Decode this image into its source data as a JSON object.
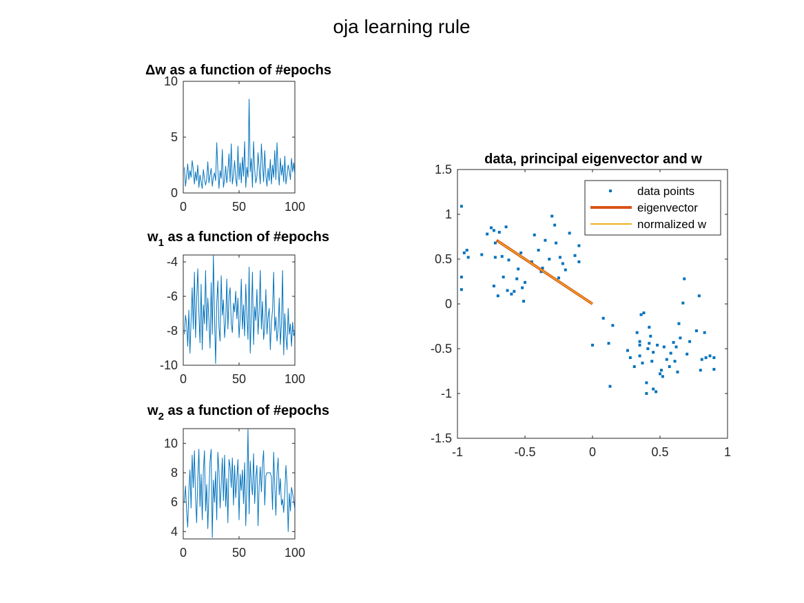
{
  "figure": {
    "title": "oja learning rule"
  },
  "colors": {
    "series_blue": "#0072BD",
    "eigenvector": "#D95319",
    "normalized_w": "#EDB120",
    "axis": "#262626",
    "legend_border": "#262626"
  },
  "chart_data": [
    {
      "id": "dw",
      "type": "line",
      "title": "Δw as a function of #epochs",
      "xlim": [
        0,
        100
      ],
      "ylim": [
        0,
        10
      ],
      "xticks": [
        0,
        50,
        100
      ],
      "yticks": [
        0,
        5,
        10
      ],
      "series": [
        {
          "x_start": 1,
          "values": [
            2.3,
            0.6,
            1.5,
            2.6,
            1.2,
            2.0,
            1.4,
            2.9,
            2.1,
            0.8,
            1.9,
            1.1,
            2.5,
            0.5,
            1.6,
            1.0,
            0.4,
            2.1,
            1.3,
            0.7,
            1.2,
            2.8,
            0.9,
            1.6,
            2.2,
            0.6,
            1.4,
            1.8,
            1.1,
            4.5,
            2.1,
            0.4,
            2.0,
            1.3,
            3.9,
            0.5,
            1.2,
            2.4,
            0.9,
            2.0,
            3.5,
            1.0,
            4.4,
            0.8,
            1.6,
            2.9,
            1.3,
            0.6,
            4.2,
            1.2,
            2.7,
            0.9,
            3.2,
            1.5,
            4.6,
            0.5,
            2.3,
            1.4,
            8.4,
            1.9,
            3.1,
            0.5,
            4.6,
            2.1,
            0.9,
            1.5,
            3.6,
            2.2,
            0.8,
            4.4,
            2.6,
            1.0,
            3.8,
            1.6,
            0.6,
            2.2,
            1.1,
            3.0,
            0.8,
            2.5,
            1.4,
            3.8,
            1.2,
            4.5,
            2.1,
            0.7,
            3.1,
            1.6,
            2.5,
            1.0,
            3.3,
            0.8,
            1.6,
            2.5,
            2.0,
            1.2,
            3.1,
            1.9,
            2.7,
            1.6
          ]
        }
      ]
    },
    {
      "id": "w1",
      "type": "line",
      "title_main": "w",
      "title_sub": "1",
      "title_rest": " as a function of #epochs",
      "xlim": [
        0,
        100
      ],
      "ylim": [
        -10,
        -3.6
      ],
      "xticks": [
        0,
        50,
        100
      ],
      "yticks": [
        -10,
        -8,
        -6,
        -4
      ],
      "series": [
        {
          "x_start": 1,
          "values": [
            -8.2,
            -7.1,
            -7.6,
            -8.9,
            -6.8,
            -9.3,
            -7.4,
            -5.5,
            -7.9,
            -4.6,
            -8.4,
            -6.2,
            -4.4,
            -7.0,
            -8.7,
            -5.3,
            -9.1,
            -6.5,
            -7.6,
            -4.5,
            -8.0,
            -6.1,
            -7.4,
            -9.0,
            -5.2,
            -8.2,
            -3.6,
            -7.2,
            -9.9,
            -6.4,
            -5.1,
            -7.8,
            -8.6,
            -4.8,
            -7.1,
            -6.2,
            -8.4,
            -7.5,
            -5.0,
            -7.9,
            -6.0,
            -5.5,
            -7.6,
            -8.1,
            -6.4,
            -6.9,
            -5.7,
            -7.3,
            -6.1,
            -8.4,
            -7.3,
            -5.0,
            -7.9,
            -6.5,
            -8.3,
            -5.3,
            -7.1,
            -8.5,
            -4.3,
            -9.3,
            -7.1,
            -4.6,
            -8.8,
            -6.6,
            -7.4,
            -5.6,
            -8.2,
            -6.9,
            -4.5,
            -7.9,
            -6.3,
            -8.5,
            -7.8,
            -5.6,
            -8.2,
            -7.2,
            -6.7,
            -9.1,
            -7.5,
            -6.8,
            -4.6,
            -8.0,
            -7.2,
            -8.6,
            -7.9,
            -6.1,
            -8.8,
            -7.6,
            -4.5,
            -9.4,
            -7.0,
            -8.4,
            -9.1,
            -6.7,
            -8.2,
            -7.6,
            -8.9,
            -7.5,
            -8.3,
            -8.0
          ]
        }
      ]
    },
    {
      "id": "w2",
      "type": "line",
      "title_main": "w",
      "title_sub": "2",
      "title_rest": " as a function of #epochs",
      "xlim": [
        0,
        100
      ],
      "ylim": [
        3.5,
        11
      ],
      "xticks": [
        0,
        50,
        100
      ],
      "yticks": [
        4,
        6,
        8,
        10
      ],
      "series": [
        {
          "x_start": 1,
          "values": [
            6.0,
            7.1,
            5.4,
            4.3,
            6.8,
            8.2,
            5.6,
            9.2,
            7.0,
            9.5,
            6.3,
            4.6,
            7.6,
            9.6,
            5.7,
            7.9,
            4.8,
            8.1,
            9.5,
            5.4,
            7.2,
            4.2,
            6.6,
            8.8,
            9.6,
            3.6,
            7.5,
            6.0,
            8.1,
            4.8,
            9.4,
            8.1,
            5.6,
            7.2,
            9.0,
            6.1,
            9.2,
            5.7,
            7.6,
            4.6,
            8.9,
            8.4,
            7.0,
            9.0,
            5.8,
            8.5,
            6.3,
            7.6,
            8.9,
            4.8,
            7.9,
            6.8,
            8.2,
            5.9,
            8.7,
            4.4,
            7.0,
            11.0,
            5.2,
            8.8,
            7.3,
            6.5,
            9.3,
            5.9,
            7.7,
            8.5,
            4.4,
            7.1,
            8.4,
            6.7,
            8.6,
            9.5,
            5.8,
            7.8,
            8.0,
            8.0,
            8.0,
            8.0,
            7.7,
            5.5,
            9.4,
            7.1,
            5.1,
            8.0,
            9.0,
            6.5,
            7.6,
            5.8,
            6.2,
            5.3,
            6.7,
            8.5,
            7.2,
            4.0,
            6.6,
            5.4,
            7.0,
            6.6,
            6.1,
            5.5
          ]
        }
      ]
    },
    {
      "id": "pca",
      "type": "scatter",
      "title": "data, principal eigenvector and w",
      "xlim": [
        -1,
        1
      ],
      "ylim": [
        -1.5,
        1.5
      ],
      "xticks": [
        -1,
        -0.5,
        0,
        0.5,
        1
      ],
      "yticks": [
        -1.5,
        -1,
        -0.5,
        0,
        0.5,
        1,
        1.5
      ],
      "legend_position": "top-right",
      "legend": [
        "data points",
        "eigenvector",
        "normalized w"
      ],
      "series": [
        {
          "name": "data points",
          "points": [
            [
              -0.97,
              1.09
            ],
            [
              -0.97,
              0.3
            ],
            [
              -0.97,
              0.16
            ],
            [
              -0.95,
              0.57
            ],
            [
              -0.93,
              0.6
            ],
            [
              -0.92,
              0.52
            ],
            [
              -0.82,
              0.55
            ],
            [
              -0.78,
              0.78
            ],
            [
              -0.75,
              0.85
            ],
            [
              -0.73,
              0.82
            ],
            [
              -0.72,
              0.68
            ],
            [
              -0.72,
              0.52
            ],
            [
              -0.73,
              0.2
            ],
            [
              -0.7,
              0.09
            ],
            [
              -0.69,
              0.8
            ],
            [
              -0.67,
              0.53
            ],
            [
              -0.66,
              0.3
            ],
            [
              -0.64,
              0.86
            ],
            [
              -0.63,
              0.15
            ],
            [
              -0.62,
              0.49
            ],
            [
              -0.6,
              0.11
            ],
            [
              -0.58,
              0.14
            ],
            [
              -0.56,
              0.28
            ],
            [
              -0.55,
              0.39
            ],
            [
              -0.53,
              0.57
            ],
            [
              -0.52,
              0.18
            ],
            [
              -0.51,
              0.03
            ],
            [
              -0.5,
              0.24
            ],
            [
              -0.45,
              0.47
            ],
            [
              -0.43,
              0.77
            ],
            [
              -0.4,
              0.6
            ],
            [
              -0.38,
              0.36
            ],
            [
              -0.37,
              0.4
            ],
            [
              -0.35,
              0.71
            ],
            [
              -0.32,
              0.5
            ],
            [
              -0.3,
              0.98
            ],
            [
              -0.28,
              0.88
            ],
            [
              -0.27,
              0.68
            ],
            [
              -0.25,
              0.29
            ],
            [
              -0.24,
              0.52
            ],
            [
              -0.22,
              0.45
            ],
            [
              -0.2,
              0.38
            ],
            [
              -0.17,
              0.79
            ],
            [
              -0.13,
              0.54
            ],
            [
              -0.1,
              0.65
            ],
            [
              -0.1,
              0.47
            ],
            [
              0.0,
              -0.46
            ],
            [
              0.08,
              -0.16
            ],
            [
              0.12,
              -0.44
            ],
            [
              0.13,
              -0.92
            ],
            [
              0.15,
              -0.24
            ],
            [
              0.26,
              -0.52
            ],
            [
              0.28,
              -0.6
            ],
            [
              0.31,
              -0.7
            ],
            [
              0.33,
              -0.32
            ],
            [
              0.35,
              -0.42
            ],
            [
              0.35,
              -0.58
            ],
            [
              0.35,
              -0.46
            ],
            [
              0.36,
              -0.12
            ],
            [
              0.37,
              -0.66
            ],
            [
              0.38,
              -0.1
            ],
            [
              0.4,
              -0.88
            ],
            [
              0.4,
              -1.0
            ],
            [
              0.41,
              -0.5
            ],
            [
              0.42,
              -0.26
            ],
            [
              0.42,
              -0.44
            ],
            [
              0.43,
              -0.36
            ],
            [
              0.44,
              -0.64
            ],
            [
              0.45,
              -0.54
            ],
            [
              0.45,
              -0.95
            ],
            [
              0.47,
              -0.98
            ],
            [
              0.48,
              -0.46
            ],
            [
              0.5,
              -0.78
            ],
            [
              0.51,
              -0.74
            ],
            [
              0.52,
              -0.81
            ],
            [
              0.53,
              -0.48
            ],
            [
              0.55,
              -0.62
            ],
            [
              0.57,
              -0.7
            ],
            [
              0.58,
              -0.55
            ],
            [
              0.6,
              -0.43
            ],
            [
              0.61,
              -0.64
            ],
            [
              0.62,
              -0.48
            ],
            [
              0.63,
              -0.76
            ],
            [
              0.64,
              -0.22
            ],
            [
              0.65,
              -0.38
            ],
            [
              0.67,
              0.01
            ],
            [
              0.68,
              0.28
            ],
            [
              0.7,
              -0.56
            ],
            [
              0.72,
              -0.42
            ],
            [
              0.77,
              -0.3
            ],
            [
              0.79,
              0.09
            ],
            [
              0.8,
              -0.74
            ],
            [
              0.81,
              -0.62
            ],
            [
              0.83,
              -0.32
            ],
            [
              0.84,
              -0.6
            ],
            [
              0.87,
              -0.58
            ],
            [
              0.9,
              -0.6
            ],
            [
              0.9,
              -0.73
            ]
          ]
        },
        {
          "name": "eigenvector",
          "points": [
            [
              -0.71,
              0.71
            ],
            [
              0.0,
              0.0
            ]
          ]
        },
        {
          "name": "normalized w",
          "points": [
            [
              -0.7,
              0.7
            ],
            [
              0.0,
              0.0
            ]
          ]
        }
      ]
    }
  ]
}
